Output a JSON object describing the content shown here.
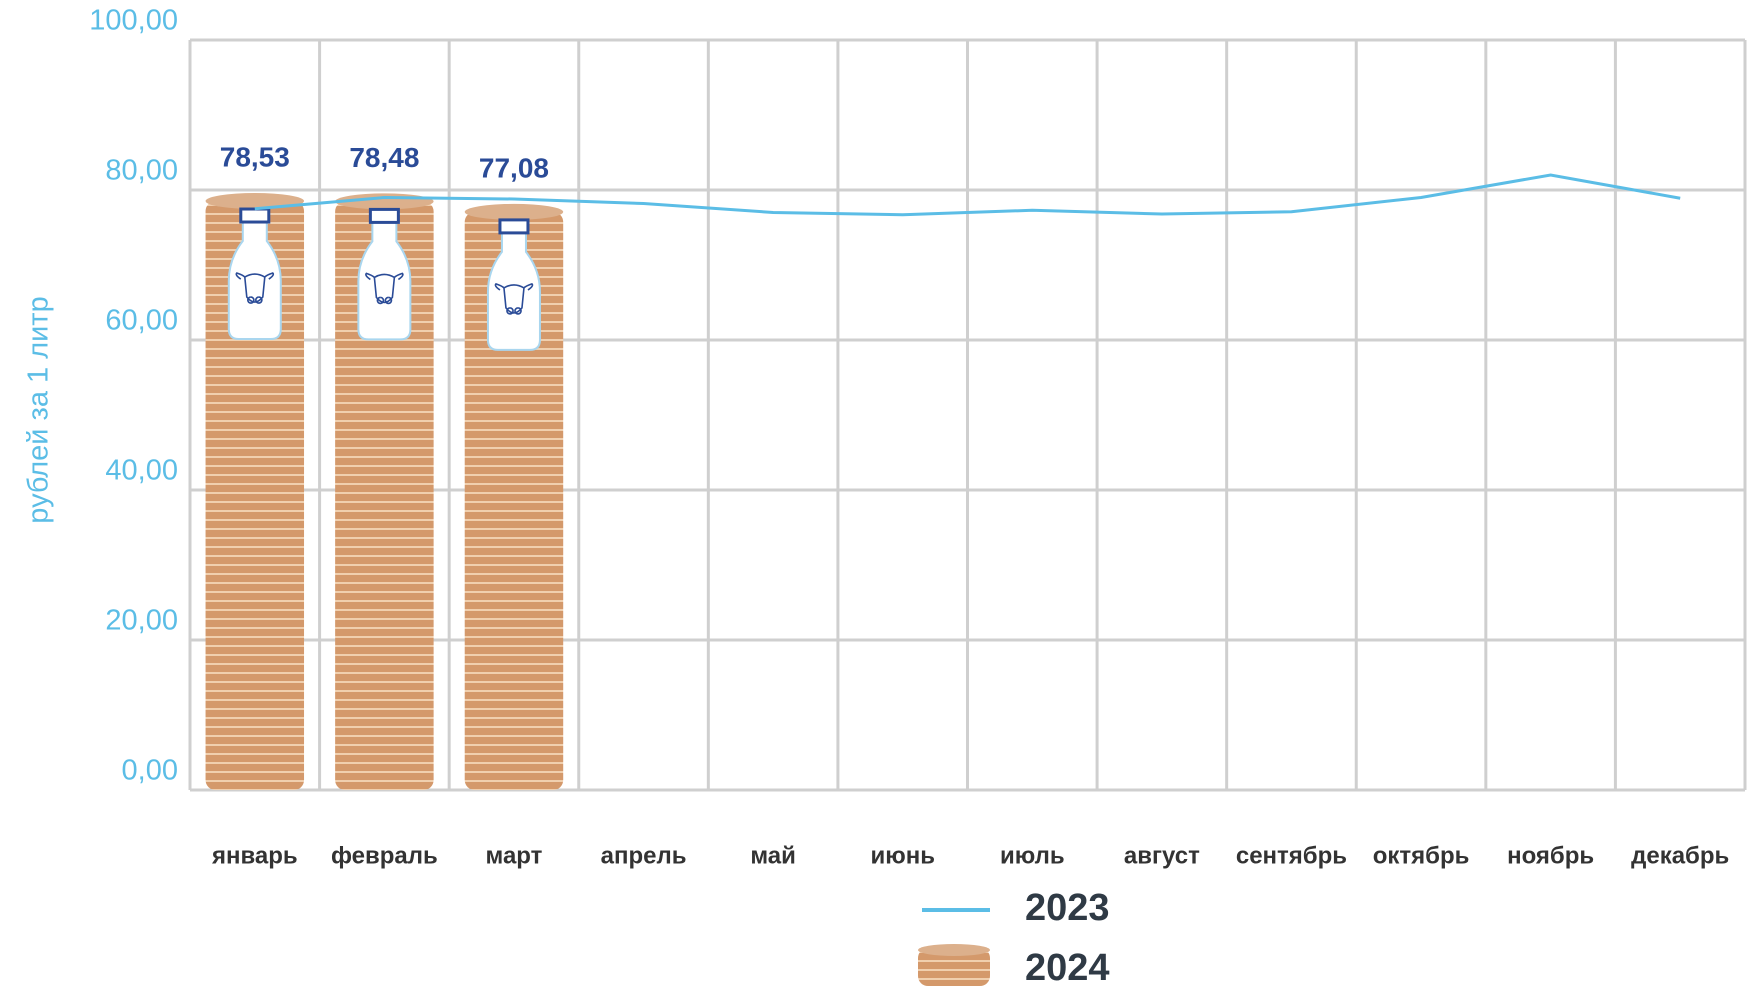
{
  "chart_data": {
    "type": "bar-line",
    "y_label": "рублей за 1 литр",
    "categories": [
      "январь",
      "февраль",
      "март",
      "апрель",
      "май",
      "июнь",
      "июль",
      "август",
      "сентябрь",
      "октябрь",
      "ноябрь",
      "декабрь"
    ],
    "series": [
      {
        "name": "2023",
        "type": "line",
        "color": "#5bbde6",
        "values": [
          77.5,
          79.0,
          78.8,
          78.2,
          77.0,
          76.7,
          77.3,
          76.8,
          77.1,
          79.0,
          82.0,
          78.9
        ]
      },
      {
        "name": "2024",
        "type": "bar",
        "color": "#d4996b",
        "values": [
          78.53,
          78.48,
          77.08,
          null,
          null,
          null,
          null,
          null,
          null,
          null,
          null,
          null
        ],
        "value_labels": [
          "78,53",
          "78,48",
          "77,08",
          null,
          null,
          null,
          null,
          null,
          null,
          null,
          null,
          null
        ]
      }
    ],
    "ylim": [
      0,
      100
    ],
    "yticks": [
      {
        "value": 0,
        "label": "0,00"
      },
      {
        "value": 20,
        "label": "20,00"
      },
      {
        "value": 40,
        "label": "40,00"
      },
      {
        "value": 60,
        "label": "60,00"
      },
      {
        "value": 80,
        "label": "80,00"
      },
      {
        "value": 100,
        "label": "100,00"
      }
    ],
    "grid": true
  }
}
